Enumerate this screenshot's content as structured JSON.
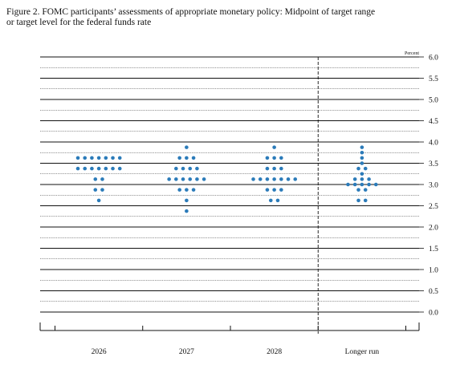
{
  "chart_data": {
    "type": "dot",
    "title": [
      "Figure 2. FOMC participants’ assessments of appropriate monetary policy: Midpoint of target range",
      "or target level for the federal funds rate"
    ],
    "y_unit": "Percent",
    "categories": [
      "2026",
      "2027",
      "2028",
      "Longer run"
    ],
    "values": [
      [
        3.625,
        3.625,
        3.625,
        3.625,
        3.625,
        3.625,
        3.625,
        3.375,
        3.375,
        3.375,
        3.375,
        3.375,
        3.375,
        3.375,
        3.125,
        3.125,
        2.875,
        2.875,
        2.625
      ],
      [
        3.875,
        3.625,
        3.625,
        3.625,
        3.375,
        3.375,
        3.375,
        3.375,
        3.125,
        3.125,
        3.125,
        3.125,
        3.125,
        3.125,
        2.875,
        2.875,
        2.875,
        2.625,
        2.375
      ],
      [
        3.875,
        3.625,
        3.625,
        3.625,
        3.375,
        3.375,
        3.375,
        3.125,
        3.125,
        3.125,
        3.125,
        3.125,
        3.125,
        3.125,
        2.875,
        2.875,
        2.875,
        2.625,
        2.625
      ],
      [
        3.875,
        3.75,
        3.625,
        3.5,
        3.375,
        3.375,
        3.25,
        3.125,
        3.125,
        3.125,
        3,
        3,
        3,
        3,
        3,
        2.875,
        2.875,
        2.625,
        2.625
      ]
    ],
    "color": "#2b7bb9",
    "ylim": [
      0,
      6
    ],
    "yticks": [
      {
        "value": 6,
        "label": "6.0"
      },
      {
        "value": 5.5,
        "label": "5.5"
      },
      {
        "value": 5,
        "label": "5.0"
      },
      {
        "value": 4.5,
        "label": "4.5"
      },
      {
        "value": 4,
        "label": "4.0"
      },
      {
        "value": 3.5,
        "label": "3.5"
      },
      {
        "value": 3,
        "label": "3.0"
      },
      {
        "value": 2.5,
        "label": "2.5"
      },
      {
        "value": 2,
        "label": "2.0"
      },
      {
        "value": 1.5,
        "label": "1.5"
      },
      {
        "value": 1,
        "label": "1.0"
      },
      {
        "value": 0.5,
        "label": "0.5"
      },
      {
        "value": 0,
        "label": "0.0"
      }
    ],
    "minor_gridlines": [
      0.25,
      0.75,
      1.25,
      1.75,
      2.25,
      2.75,
      3.25,
      3.75,
      4.25,
      4.75,
      5.25,
      5.75
    ],
    "grid": true
  }
}
